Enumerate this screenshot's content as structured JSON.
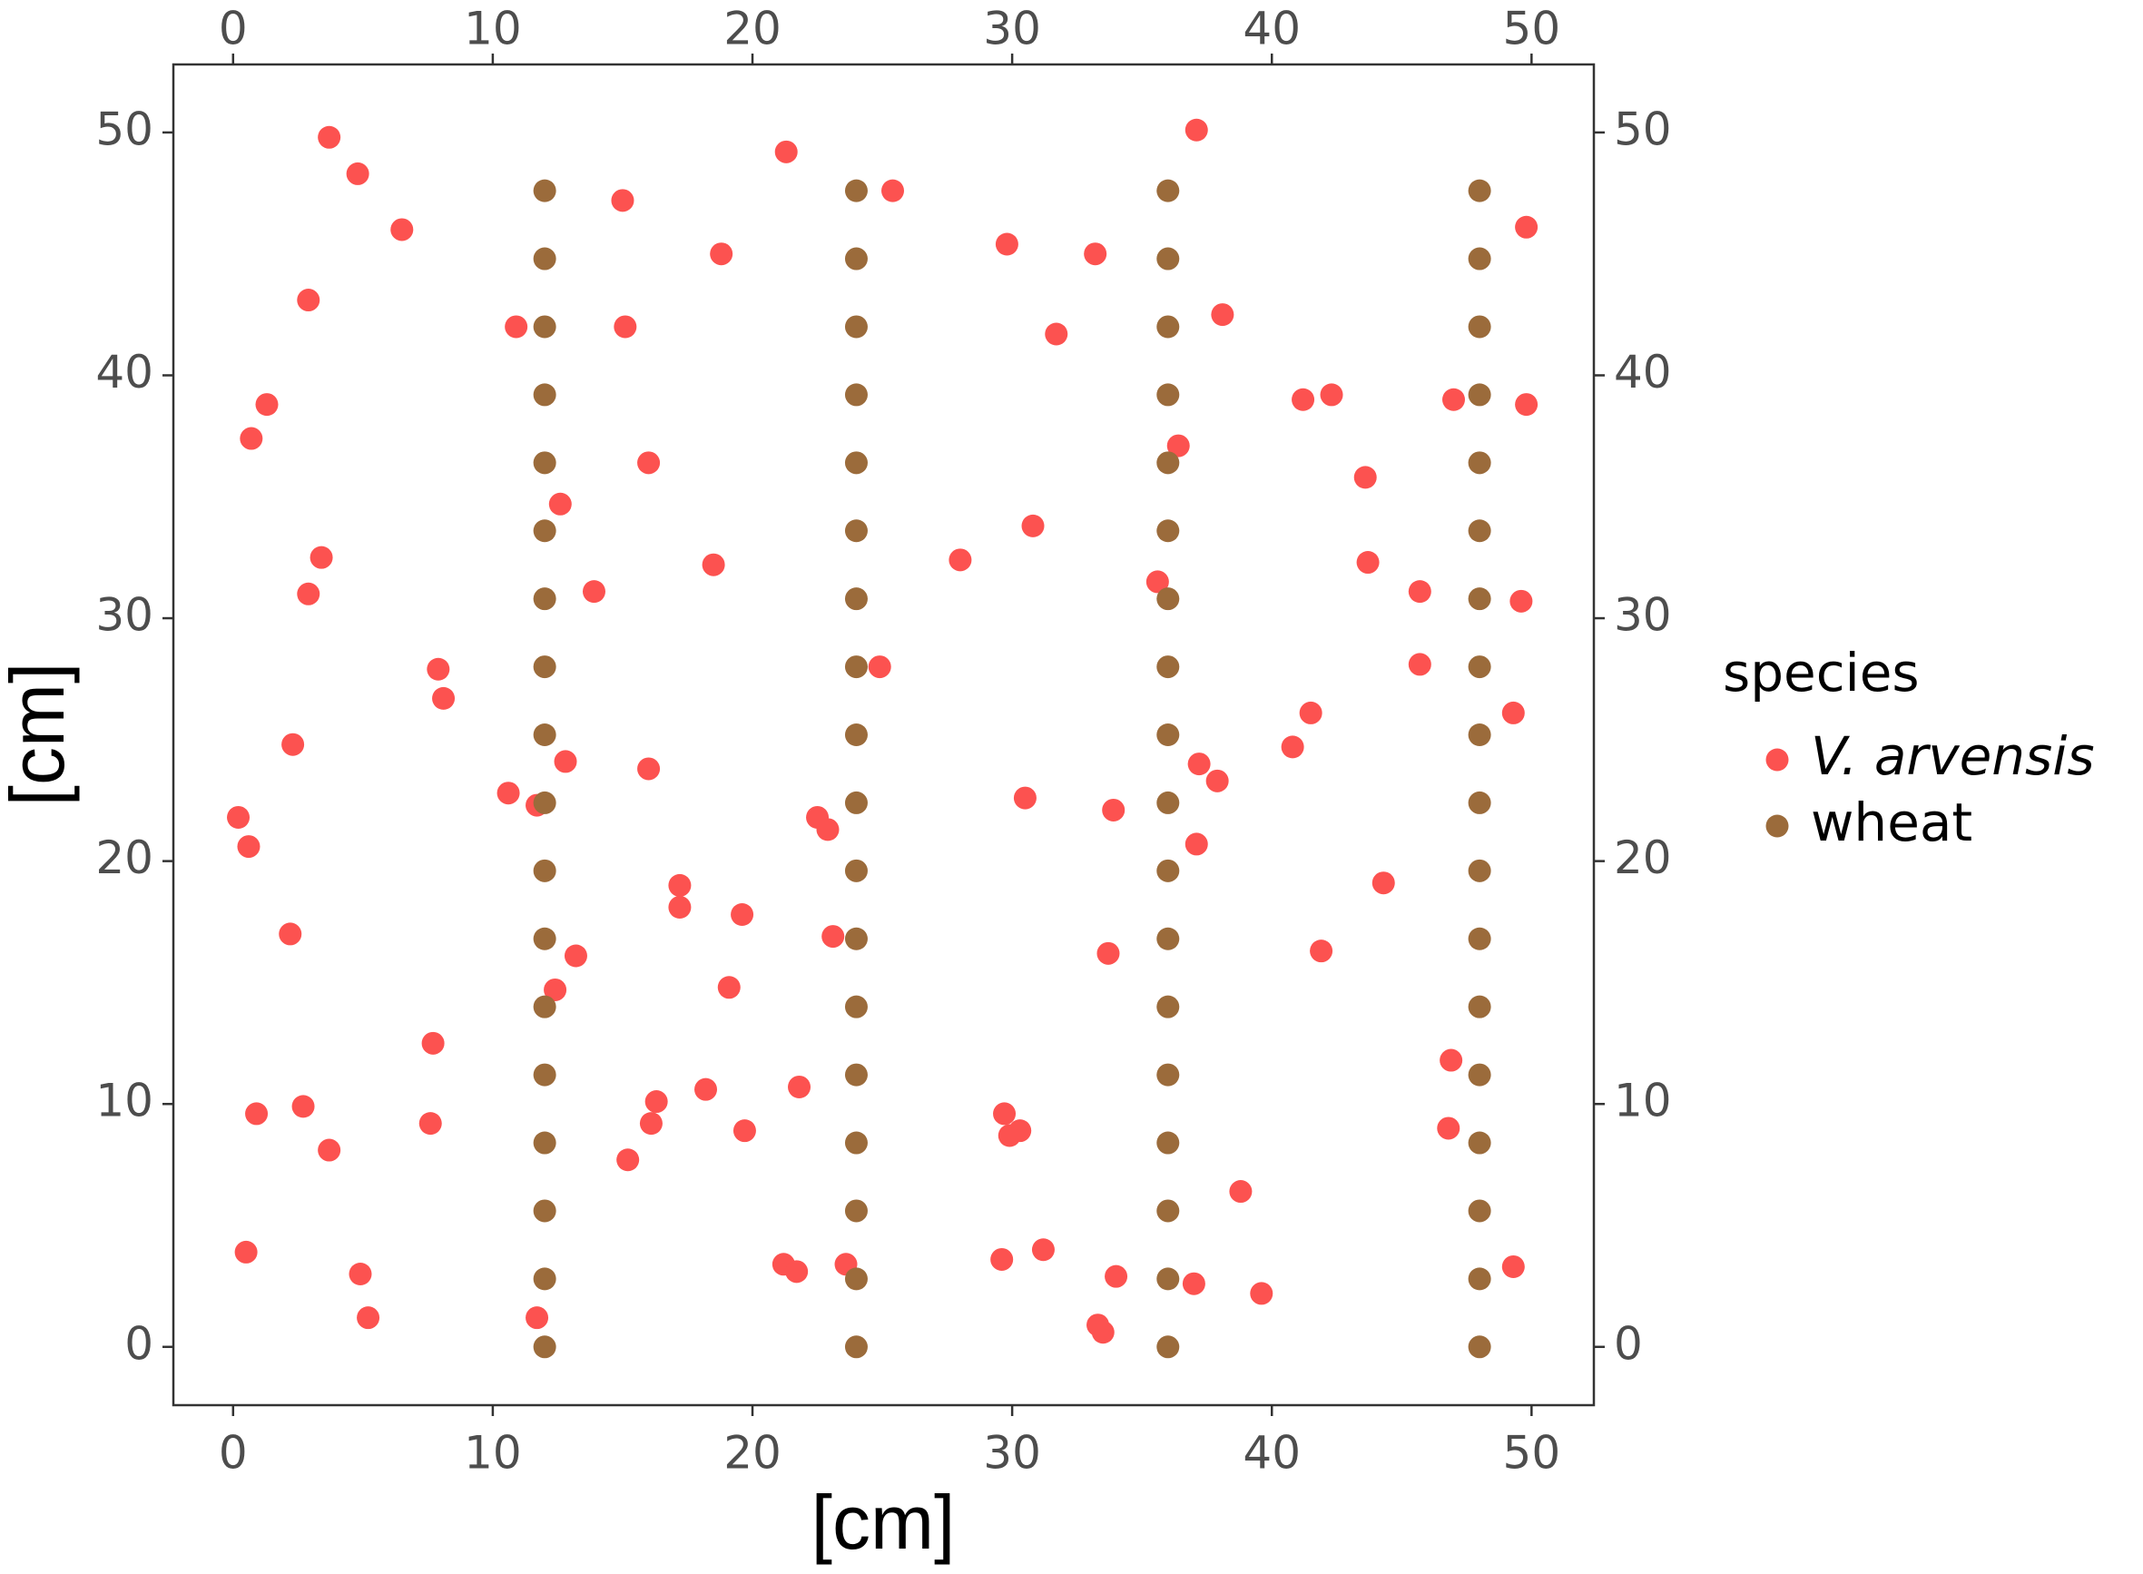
{
  "chart_data": {
    "type": "scatter",
    "x_label": "[cm]",
    "y_label": "[cm]",
    "legend_title": "species",
    "legend": "right",
    "xlim": [
      -2.3,
      52.4
    ],
    "ylim": [
      -2.4,
      52.8
    ],
    "xticks": [
      0,
      10,
      20,
      30,
      40,
      50
    ],
    "yticks": [
      0,
      10,
      20,
      30,
      40,
      50
    ],
    "series": [
      {
        "name": "V. arvensis",
        "color": "#fc5250",
        "x": [
          3.7,
          4.8,
          6.5,
          2.9,
          1.3,
          0.7,
          3.4,
          2.9,
          7.9,
          8.1,
          2.3,
          0.2,
          0.6,
          2.2,
          7.7,
          7.6,
          0.9,
          2.7,
          3.7,
          0.5,
          4.9,
          5.2,
          10.9,
          12.6,
          10.6,
          11.7,
          12.8,
          12.4,
          13.2,
          11.7,
          15.0,
          15.1,
          16.0,
          13.9,
          18.5,
          18.8,
          21.3,
          16.0,
          17.2,
          17.2,
          19.6,
          19.1,
          16.3,
          16.1,
          18.2,
          19.7,
          15.2,
          21.8,
          22.5,
          22.9,
          23.1,
          21.2,
          21.7,
          23.6,
          25.4,
          24.9,
          29.8,
          28.0,
          30.8,
          31.7,
          33.2,
          30.5,
          33.9,
          33.7,
          29.7,
          29.9,
          30.3,
          29.6,
          31.2,
          33.3,
          33.5,
          34.0,
          37.1,
          38.1,
          36.4,
          35.6,
          37.2,
          37.9,
          37.1,
          38.8,
          37.0,
          39.6,
          41.2,
          42.3,
          43.6,
          43.7,
          45.7,
          45.7,
          41.5,
          40.8,
          44.3,
          41.9,
          46.9,
          46.8,
          47.0,
          49.8,
          49.8,
          49.6,
          49.3,
          49.3
        ],
        "values": [
          49.8,
          48.3,
          46.0,
          43.1,
          38.8,
          37.4,
          32.5,
          31.0,
          27.9,
          26.7,
          24.8,
          21.8,
          20.6,
          17.0,
          12.5,
          9.2,
          9.6,
          9.9,
          8.1,
          3.9,
          3.0,
          1.2,
          42.0,
          34.7,
          22.8,
          22.3,
          24.1,
          14.7,
          16.1,
          1.2,
          47.2,
          42.0,
          36.4,
          31.1,
          32.2,
          45.0,
          49.2,
          23.8,
          19.0,
          18.1,
          17.8,
          14.8,
          10.1,
          9.2,
          10.6,
          8.9,
          7.7,
          10.7,
          21.8,
          21.3,
          16.9,
          3.4,
          3.1,
          3.4,
          47.6,
          28.0,
          45.4,
          32.4,
          33.8,
          41.7,
          45.0,
          22.6,
          22.1,
          16.2,
          9.6,
          8.7,
          8.9,
          3.6,
          4.0,
          0.9,
          0.6,
          2.9,
          50.1,
          42.5,
          37.1,
          31.5,
          24.0,
          23.3,
          20.7,
          6.4,
          2.6,
          2.2,
          39.0,
          39.2,
          35.8,
          32.3,
          31.1,
          28.1,
          26.1,
          24.7,
          19.1,
          16.3,
          11.8,
          9.0,
          39.0,
          38.8,
          46.1,
          30.7,
          26.1,
          3.3
        ]
      },
      {
        "name": "wheat",
        "color": "#9b6b3b",
        "x": [
          12,
          12,
          12,
          12,
          12,
          12,
          12,
          12,
          12,
          12,
          12,
          12,
          12,
          12,
          12,
          12,
          12,
          12,
          24,
          24,
          24,
          24,
          24,
          24,
          24,
          24,
          24,
          24,
          24,
          24,
          24,
          24,
          24,
          24,
          24,
          24,
          36,
          36,
          36,
          36,
          36,
          36,
          36,
          36,
          36,
          36,
          36,
          36,
          36,
          36,
          36,
          36,
          36,
          36,
          48,
          48,
          48,
          48,
          48,
          48,
          48,
          48,
          48,
          48,
          48,
          48,
          48,
          48,
          48,
          48,
          48,
          48
        ],
        "values": [
          0,
          2.8,
          5.6,
          8.4,
          11.2,
          14,
          16.8,
          19.6,
          22.4,
          25.2,
          28,
          30.8,
          33.6,
          36.4,
          39.2,
          42,
          44.8,
          47.6,
          0,
          2.8,
          5.6,
          8.4,
          11.2,
          14,
          16.8,
          19.6,
          22.4,
          25.2,
          28,
          30.8,
          33.6,
          36.4,
          39.2,
          42,
          44.8,
          47.6,
          0,
          2.8,
          5.6,
          8.4,
          11.2,
          14,
          16.8,
          19.6,
          22.4,
          25.2,
          28,
          30.8,
          33.6,
          36.4,
          39.2,
          42,
          44.8,
          47.6,
          0,
          2.8,
          5.6,
          8.4,
          11.2,
          14,
          16.8,
          19.6,
          22.4,
          25.2,
          28,
          30.8,
          33.6,
          36.4,
          39.2,
          42,
          44.8,
          47.6
        ]
      }
    ]
  }
}
